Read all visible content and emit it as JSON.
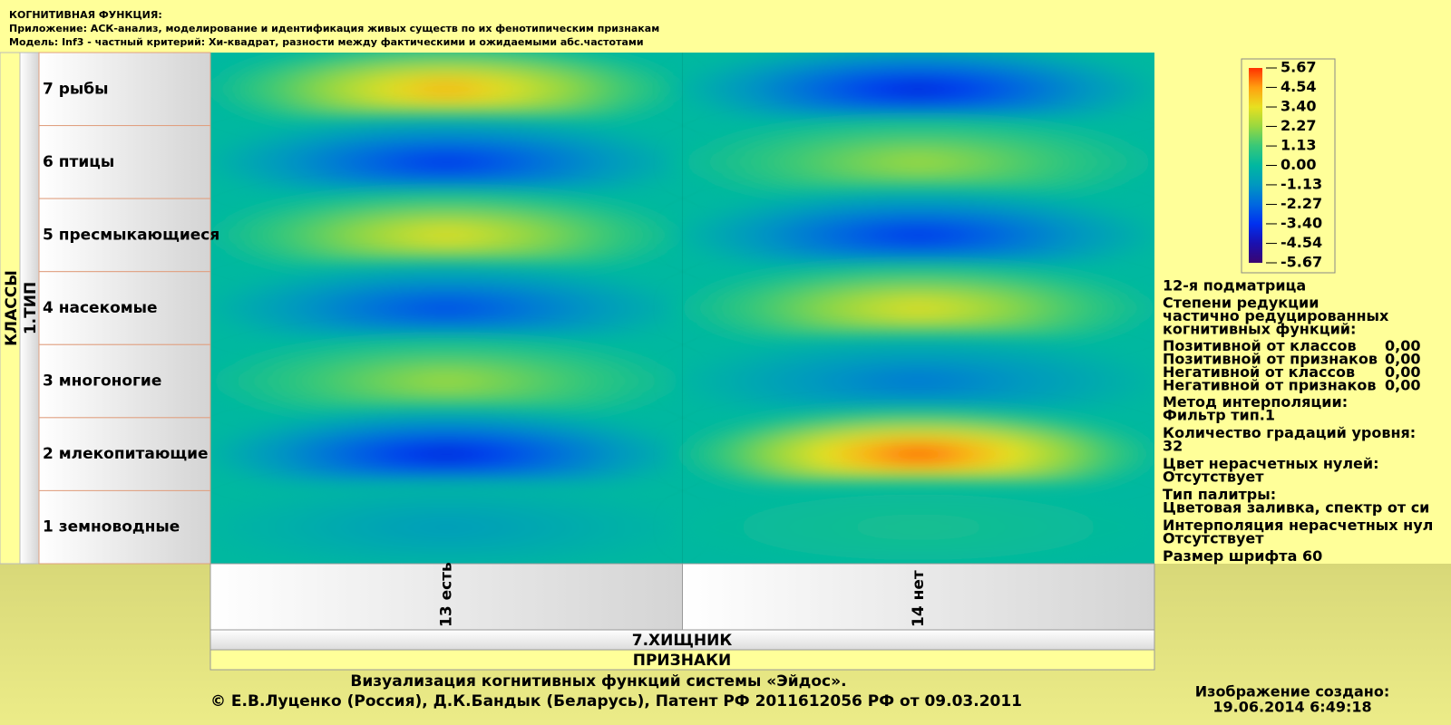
{
  "header": {
    "title": "КОГНИТИВНАЯ ФУНКЦИЯ:",
    "app": "Приложение: АСК-анализ, моделирование и идентификация живых существ по их фенотипическим признакам",
    "model": "Модель: Inf3 - частный критерий: Хи-квадрат, разности между фактическими и ожидаемыми абс.частотами"
  },
  "chart_data": {
    "type": "heatmap",
    "y_axis_title": "КЛАССЫ",
    "y_group": "1.ТИП",
    "rows": [
      "7 рыбы",
      "6 птицы",
      "5 пресмыкающиеся",
      "4 насекомые",
      "3 многоногие",
      "2 млекопитающие",
      "1 земноводные"
    ],
    "columns": [
      "13 есть",
      "14 нет"
    ],
    "x_group": "7.ХИЩНИК",
    "x_axis_title": "ПРИЗНАКИ",
    "values": [
      [
        4.5,
        -4.0
      ],
      [
        -3.5,
        2.5
      ],
      [
        3.5,
        -3.5
      ],
      [
        -3.0,
        3.5
      ],
      [
        2.5,
        -2.0
      ],
      [
        -4.0,
        5.67
      ],
      [
        -1.0,
        0.5
      ]
    ],
    "clim": [
      -5.67,
      5.67
    ],
    "colormap": [
      "#3a0570",
      "#1a10b0",
      "#0030f0",
      "#0068e0",
      "#0098c0",
      "#00b8a0",
      "#38c878",
      "#98d840",
      "#e8e020",
      "#ffa010",
      "#ff3000"
    ],
    "colorbar_ticks": [
      5.67,
      4.54,
      {
        "value": 3.4,
        "label": "3.40"
      },
      2.27,
      1.13,
      {
        "value": 0,
        "label": "0.00"
      },
      -1.13,
      -2.27,
      {
        "value": -3.4,
        "label": "-3.40"
      },
      -4.54,
      -5.67
    ]
  },
  "info": {
    "lines": [
      "12-я подматрица",
      "Степени редукции",
      "частично редуцированных",
      "когнитивных функций:"
    ],
    "reductions": [
      [
        "Позитивной от классов",
        "0,00"
      ],
      [
        "Позитивной от признаков",
        "0,00"
      ],
      [
        "Негативной от классов",
        "0,00"
      ],
      [
        "Негативной от признаков",
        "0,00"
      ]
    ],
    "settings": [
      "Метод интерполяции:",
      "Фильтр тип.1",
      "Количество градаций уровня:",
      "32",
      "Цвет нерасчетных нулей:",
      "Отсутствует",
      "Тип палитры:",
      "Цветовая заливка, спектр от си",
      "Интерполяция нерасчетных нул",
      "Отсутствует",
      "Размер шрифта 60"
    ]
  },
  "footer": {
    "line1": "Визуализация когнитивных функций системы «Эйдос».",
    "line2": "© Е.В.Луценко (Россия), Д.К.Бандык (Беларусь), Патент РФ  2011612056 РФ от 09.03.2011",
    "created_label": "Изображение создано:",
    "created": "19.06.2014   6:49:18"
  }
}
